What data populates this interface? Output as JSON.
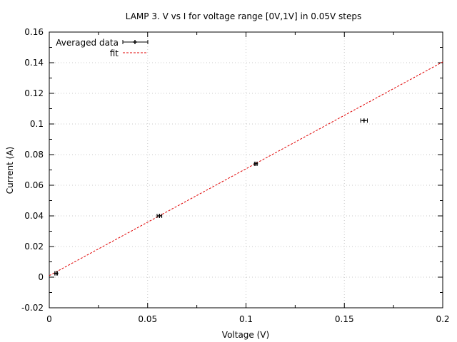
{
  "chart_data": {
    "type": "scatter",
    "title": "LAMP 3. V vs I for voltage range [0V,1V] in 0.05V steps",
    "xlabel": "Voltage (V)",
    "ylabel": "Current (A)",
    "xlim": [
      0,
      0.2
    ],
    "ylim": [
      -0.02,
      0.16
    ],
    "x_ticks": [
      0,
      0.05,
      0.1,
      0.15,
      0.2
    ],
    "x_tick_labels": [
      "0",
      "0.05",
      "0.1",
      "0.15",
      "0.2"
    ],
    "y_ticks": [
      -0.02,
      0,
      0.02,
      0.04,
      0.06,
      0.08,
      0.1,
      0.12,
      0.14,
      0.16
    ],
    "y_tick_labels": [
      "-0.02",
      "0",
      "0.02",
      "0.04",
      "0.06",
      "0.08",
      "0.1",
      "0.12",
      "0.14",
      "0.16"
    ],
    "grid": true,
    "legend_position": "top-left",
    "series": [
      {
        "name": "Averaged data",
        "style": "points-with-x-errorbars",
        "color": "#000000",
        "points": [
          {
            "x": 0.0035,
            "y": 0.0025,
            "xerr": 0.0007
          },
          {
            "x": 0.056,
            "y": 0.04,
            "xerr": 0.0012
          },
          {
            "x": 0.105,
            "y": 0.074,
            "xerr": 0.0007
          },
          {
            "x": 0.16,
            "y": 0.1022,
            "xerr": 0.0017
          }
        ]
      },
      {
        "name": "fit",
        "style": "dashed-line",
        "color": "#e00000",
        "x": [
          0.0,
          0.2
        ],
        "y": [
          0.001,
          0.1405
        ]
      }
    ]
  }
}
